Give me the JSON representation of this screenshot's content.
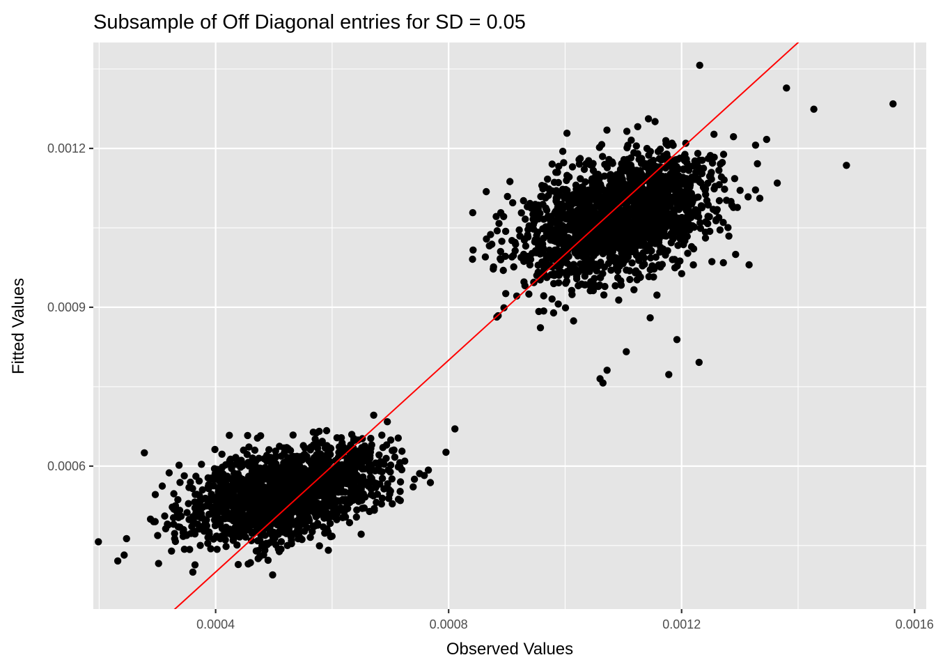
{
  "chart_data": {
    "type": "scatter",
    "title": "Subsample of Off Diagonal entries for SD = 0.05",
    "xlabel": "Observed Values",
    "ylabel": "Fitted Values",
    "xlim": [
      0.00019,
      0.00162
    ],
    "ylim": [
      0.00033,
      0.0014
    ],
    "x_ticks": [
      {
        "value": 0.0004,
        "label": "0.0004"
      },
      {
        "value": 0.0008,
        "label": "0.0008"
      },
      {
        "value": 0.0012,
        "label": "0.0012"
      },
      {
        "value": 0.0016,
        "label": "0.0016"
      }
    ],
    "y_ticks": [
      {
        "value": 0.0006,
        "label": "0.0006"
      },
      {
        "value": 0.0009,
        "label": "0.0009"
      },
      {
        "value": 0.0012,
        "label": "0.0012"
      }
    ],
    "grid": true,
    "panel_background": "#e5e5e5",
    "point_color": "#000000",
    "clusters": [
      {
        "center_x": 0.00052,
        "center_y": 0.00055,
        "approx_x_range": [
          0.00023,
          0.00078
        ],
        "approx_y_range": [
          0.00046,
          0.00079
        ]
      },
      {
        "center_x": 0.00109,
        "center_y": 0.00107,
        "approx_x_range": [
          0.00087,
          0.00143
        ],
        "approx_y_range": [
          0.00075,
          0.00136
        ]
      }
    ],
    "outliers": [
      [
        0.000232,
        0.000421
      ],
      [
        0.000243,
        0.000432
      ],
      [
        0.000247,
        0.000463
      ],
      [
        0.000842,
        0.001008
      ],
      [
        0.00087,
        0.001016
      ],
      [
        0.000863,
        0.000995
      ],
      [
        0.000885,
        0.000884
      ],
      [
        0.000895,
        0.000899
      ],
      [
        0.00106,
        0.000765
      ],
      [
        0.001065,
        0.000757
      ],
      [
        0.001072,
        0.000781
      ],
      [
        0.001105,
        0.000816
      ],
      [
        0.001178,
        0.000773
      ],
      [
        0.00123,
        0.000796
      ],
      [
        0.001192,
        0.000839
      ],
      [
        0.001146,
        0.00088
      ],
      [
        0.001231,
        0.001357
      ],
      [
        0.001563,
        0.001284
      ],
      [
        0.001483,
        0.001168
      ],
      [
        0.001427,
        0.001274
      ],
      [
        0.00138,
        0.001314
      ],
      [
        0.001289,
        0.001222
      ]
    ],
    "reference_line": {
      "label": "y = x",
      "color": "#ff0000",
      "slope": 1,
      "intercept": 0
    }
  }
}
